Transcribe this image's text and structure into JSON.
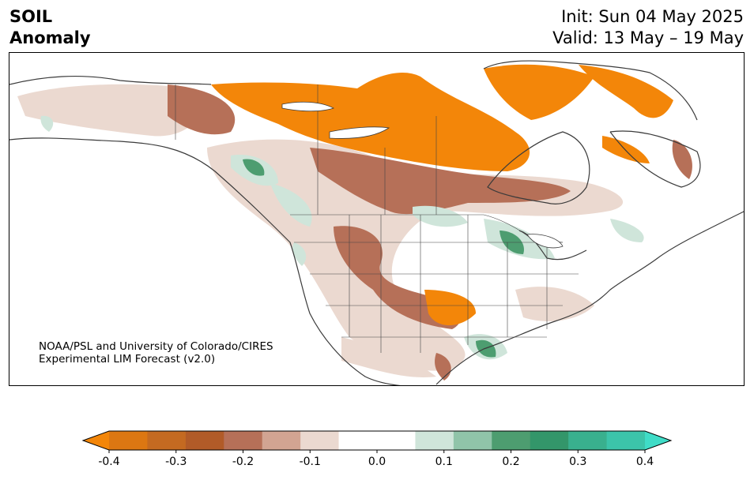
{
  "header": {
    "variable_line1": "SOIL",
    "variable_line2": "Anomaly",
    "init_text": "Init: Sun 04 May 2025",
    "valid_text": "Valid: 13 May – 19 May"
  },
  "credit": {
    "line1": "NOAA/PSL and University of Colorado/CIRES",
    "line2": "Experimental LIM Forecast (v2.0)"
  },
  "colorbar": {
    "colors": [
      "#f38609",
      "#dc7712",
      "#c46a21",
      "#b15b28",
      "#b67058",
      "#d2a492",
      "#ebd9d0",
      "#ffffff",
      "#ffffff",
      "#cfe5da",
      "#90c4a9",
      "#4d9d70",
      "#33966a",
      "#39b08e",
      "#3cc4aa",
      "#3fdcc7"
    ],
    "ticks": [
      "-0.4",
      "-0.3",
      "-0.2",
      "-0.1",
      "0.0",
      "0.1",
      "0.2",
      "0.3",
      "0.4"
    ],
    "extend": "both"
  }
}
